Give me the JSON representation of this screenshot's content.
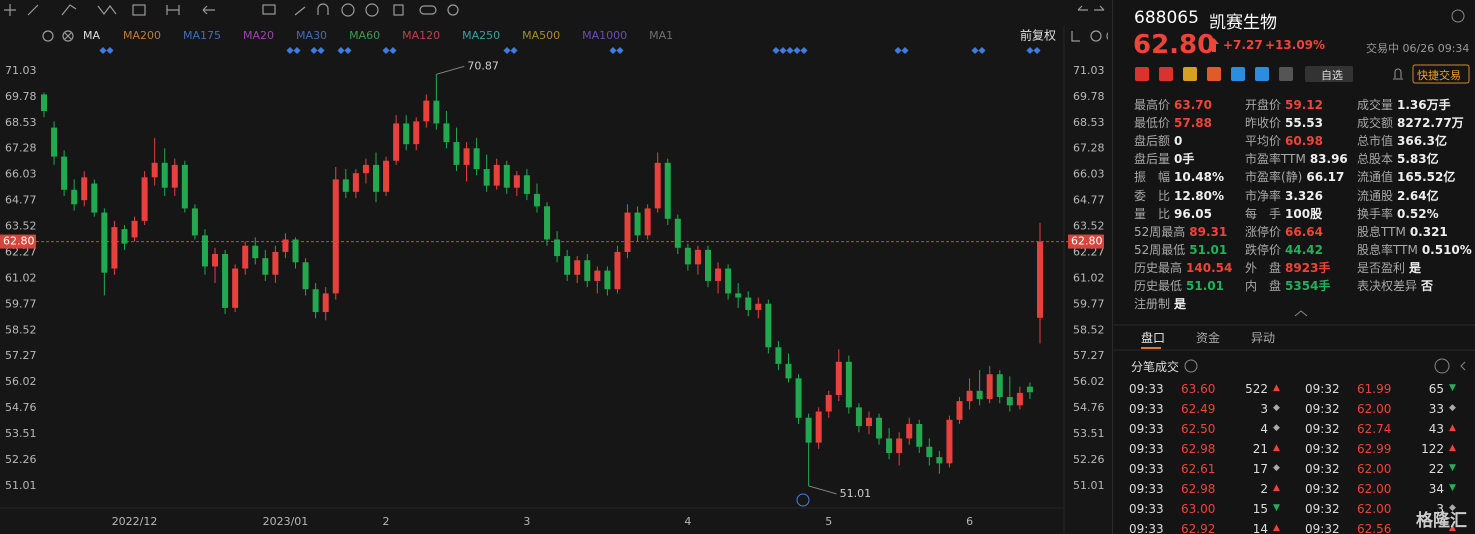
{
  "toolbar": {
    "ma": "MA",
    "ma_legend": [
      {
        "label": "MA200",
        "color": "#c27a3c"
      },
      {
        "label": "MA175",
        "color": "#3f6fb3"
      },
      {
        "label": "MA20",
        "color": "#a043ad"
      },
      {
        "label": "MA30",
        "color": "#3f6fb3"
      },
      {
        "label": "MA60",
        "color": "#3f9a4c"
      },
      {
        "label": "MA120",
        "color": "#b4464b"
      },
      {
        "label": "MA250",
        "color": "#3a9fa2"
      },
      {
        "label": "MA500",
        "color": "#a98b2c"
      },
      {
        "label": "MA1000",
        "color": "#6b4db3"
      },
      {
        "label": "MA1",
        "color": "#6f6f6f"
      }
    ],
    "adjust": "前复权"
  },
  "chart_data": {
    "type": "candlestick",
    "up_color": "#e8403c",
    "down_color": "#22a94f",
    "ylim": [
      50.09,
      72.14
    ],
    "yticks": [
      71.03,
      69.78,
      68.53,
      67.28,
      66.03,
      64.77,
      63.52,
      62.27,
      61.02,
      59.77,
      58.52,
      57.27,
      56.02,
      54.76,
      53.51,
      52.26,
      51.01
    ],
    "last_price": {
      "value": 62.8,
      "label": "62.80"
    },
    "annotations": [
      70.87,
      51.01
    ],
    "categories": [
      null,
      null,
      null,
      null,
      null,
      null,
      null,
      null,
      null,
      "2022/12",
      null,
      null,
      null,
      null,
      null,
      null,
      null,
      null,
      null,
      null,
      null,
      null,
      null,
      null,
      "2023/01",
      null,
      null,
      null,
      null,
      null,
      null,
      null,
      null,
      null,
      "2",
      null,
      null,
      null,
      null,
      null,
      null,
      null,
      null,
      null,
      null,
      null,
      null,
      null,
      "3",
      null,
      null,
      null,
      null,
      null,
      null,
      null,
      null,
      null,
      null,
      null,
      null,
      null,
      null,
      null,
      "4",
      null,
      null,
      null,
      null,
      null,
      null,
      null,
      null,
      null,
      null,
      null,
      null,
      null,
      "5",
      null,
      null,
      null,
      null,
      null,
      null,
      null,
      null,
      null,
      null,
      null,
      null,
      null,
      "6",
      null,
      null,
      null,
      null,
      null,
      null,
      null
    ],
    "candles": [
      [
        69.9,
        70.0,
        68.8,
        69.1
      ],
      [
        68.3,
        68.6,
        66.5,
        66.9
      ],
      [
        66.9,
        67.2,
        65.0,
        65.3
      ],
      [
        65.3,
        65.8,
        64.3,
        64.6
      ],
      [
        64.8,
        66.2,
        64.5,
        65.9
      ],
      [
        65.6,
        65.8,
        64.0,
        64.2
      ],
      [
        64.2,
        64.4,
        60.2,
        61.3
      ],
      [
        61.5,
        63.8,
        61.2,
        63.5
      ],
      [
        63.4,
        63.6,
        62.4,
        62.7
      ],
      [
        63.0,
        64.0,
        62.8,
        63.8
      ],
      [
        63.8,
        66.2,
        63.6,
        65.9
      ],
      [
        65.9,
        67.8,
        65.5,
        66.6
      ],
      [
        66.6,
        67.3,
        65.0,
        65.4
      ],
      [
        65.4,
        66.8,
        65.0,
        66.5
      ],
      [
        66.5,
        66.7,
        64.2,
        64.4
      ],
      [
        64.4,
        64.6,
        62.9,
        63.1
      ],
      [
        63.1,
        63.4,
        61.2,
        61.6
      ],
      [
        61.6,
        62.5,
        60.8,
        62.2
      ],
      [
        62.2,
        62.4,
        59.3,
        59.6
      ],
      [
        59.6,
        61.7,
        59.4,
        61.5
      ],
      [
        61.5,
        62.8,
        61.2,
        62.6
      ],
      [
        62.6,
        63.0,
        61.7,
        62.0
      ],
      [
        62.0,
        62.4,
        60.9,
        61.2
      ],
      [
        61.2,
        62.6,
        60.8,
        62.3
      ],
      [
        62.3,
        63.2,
        62.0,
        62.9
      ],
      [
        62.9,
        63.0,
        61.5,
        61.8
      ],
      [
        61.8,
        62.0,
        60.2,
        60.5
      ],
      [
        60.5,
        60.8,
        59.1,
        59.4
      ],
      [
        59.4,
        60.6,
        59.0,
        60.3
      ],
      [
        60.3,
        66.4,
        60.0,
        65.8
      ],
      [
        65.8,
        66.3,
        64.9,
        65.2
      ],
      [
        65.2,
        66.3,
        64.9,
        66.1
      ],
      [
        66.1,
        66.8,
        65.6,
        66.5
      ],
      [
        66.5,
        67.1,
        64.7,
        65.2
      ],
      [
        65.2,
        66.9,
        65.0,
        66.7
      ],
      [
        66.7,
        68.9,
        66.5,
        68.5
      ],
      [
        68.5,
        68.9,
        67.2,
        67.5
      ],
      [
        67.5,
        68.8,
        67.2,
        68.6
      ],
      [
        68.6,
        69.9,
        68.3,
        69.6
      ],
      [
        69.6,
        70.87,
        68.2,
        68.5
      ],
      [
        68.5,
        69.1,
        67.3,
        67.6
      ],
      [
        67.6,
        68.3,
        66.2,
        66.5
      ],
      [
        66.5,
        67.6,
        65.7,
        67.3
      ],
      [
        67.3,
        67.8,
        66.0,
        66.3
      ],
      [
        66.3,
        67.0,
        65.2,
        65.5
      ],
      [
        65.5,
        66.8,
        65.3,
        66.5
      ],
      [
        66.5,
        66.7,
        65.1,
        65.4
      ],
      [
        65.4,
        66.2,
        65.0,
        66.0
      ],
      [
        66.0,
        66.3,
        64.8,
        65.1
      ],
      [
        65.1,
        65.6,
        64.2,
        64.5
      ],
      [
        64.5,
        64.7,
        62.6,
        62.9
      ],
      [
        62.9,
        63.3,
        61.8,
        62.1
      ],
      [
        62.1,
        62.4,
        60.9,
        61.2
      ],
      [
        61.2,
        62.1,
        60.8,
        61.9
      ],
      [
        61.9,
        62.2,
        60.6,
        60.9
      ],
      [
        60.9,
        61.6,
        60.3,
        61.4
      ],
      [
        61.4,
        61.6,
        60.2,
        60.5
      ],
      [
        60.5,
        62.6,
        60.3,
        62.3
      ],
      [
        62.3,
        64.6,
        62.0,
        64.2
      ],
      [
        64.2,
        64.5,
        62.8,
        63.1
      ],
      [
        63.1,
        64.6,
        62.9,
        64.4
      ],
      [
        64.4,
        67.1,
        64.2,
        66.6
      ],
      [
        66.6,
        66.8,
        63.6,
        63.9
      ],
      [
        63.9,
        64.1,
        62.2,
        62.5
      ],
      [
        62.5,
        62.7,
        61.4,
        61.7
      ],
      [
        61.7,
        62.6,
        61.2,
        62.4
      ],
      [
        62.4,
        62.6,
        60.6,
        60.9
      ],
      [
        60.9,
        61.8,
        60.3,
        61.5
      ],
      [
        61.5,
        61.7,
        60.0,
        60.3
      ],
      [
        60.3,
        60.8,
        59.6,
        60.1
      ],
      [
        60.1,
        60.4,
        59.2,
        59.5
      ],
      [
        59.5,
        60.1,
        59.1,
        59.8
      ],
      [
        59.8,
        60.0,
        57.4,
        57.7
      ],
      [
        57.7,
        58.0,
        56.6,
        56.9
      ],
      [
        56.9,
        57.4,
        56.0,
        56.2
      ],
      [
        56.2,
        56.4,
        54.0,
        54.3
      ],
      [
        54.3,
        54.5,
        51.01,
        53.1
      ],
      [
        53.1,
        54.8,
        52.8,
        54.6
      ],
      [
        54.6,
        55.6,
        54.3,
        55.4
      ],
      [
        55.4,
        57.6,
        55.1,
        57.0
      ],
      [
        57.0,
        57.3,
        54.5,
        54.8
      ],
      [
        54.8,
        55.0,
        53.6,
        53.9
      ],
      [
        53.9,
        54.6,
        53.5,
        54.3
      ],
      [
        54.3,
        54.5,
        53.0,
        53.3
      ],
      [
        53.3,
        53.8,
        52.3,
        52.6
      ],
      [
        52.6,
        53.6,
        52.0,
        53.3
      ],
      [
        53.3,
        54.3,
        53.0,
        54.0
      ],
      [
        54.0,
        54.2,
        52.6,
        52.9
      ],
      [
        52.9,
        53.3,
        52.0,
        52.4
      ],
      [
        52.4,
        52.7,
        51.6,
        52.1
      ],
      [
        52.1,
        54.4,
        51.9,
        54.2
      ],
      [
        54.2,
        55.3,
        54.0,
        55.1
      ],
      [
        55.1,
        56.2,
        54.7,
        55.6
      ],
      [
        55.6,
        56.6,
        54.9,
        55.2
      ],
      [
        55.2,
        56.8,
        55.0,
        56.4
      ],
      [
        56.4,
        56.6,
        55.0,
        55.3
      ],
      [
        55.3,
        56.3,
        54.6,
        54.9
      ],
      [
        54.9,
        55.8,
        54.7,
        55.5
      ],
      [
        55.8,
        56.0,
        55.2,
        55.53
      ],
      [
        59.12,
        63.7,
        57.88,
        62.8
      ]
    ]
  },
  "quote": {
    "code": "688065",
    "name": "凯赛生物",
    "price": "62.80",
    "change": "+7.27",
    "change_pct": "+13.09%",
    "status": "交易中 06/26 09:34",
    "watch": "自选",
    "quick_trade": "快捷交易"
  },
  "stats": [
    [
      {
        "label": "最高价",
        "value": "63.70",
        "color": "#f0433a"
      },
      {
        "label": "最低价",
        "value": "57.88",
        "color": "#f0433a"
      },
      {
        "label": "盘后额",
        "value": "0"
      },
      {
        "label": "盘后量",
        "value": "0手"
      },
      {
        "label": "振　幅",
        "value": "10.48%"
      },
      {
        "label": "委　比",
        "value": "12.80%"
      },
      {
        "label": "量　比",
        "value": "96.05"
      },
      {
        "label": "52周最高",
        "value": "89.31",
        "color": "#f0433a"
      },
      {
        "label": "52周最低",
        "value": "51.01",
        "color": "#20b15a"
      },
      {
        "label": "历史最高",
        "value": "140.54",
        "color": "#f0433a"
      },
      {
        "label": "历史最低",
        "value": "51.01",
        "color": "#20b15a"
      },
      {
        "label": "注册制",
        "value": "是"
      }
    ],
    [
      {
        "label": "开盘价",
        "value": "59.12",
        "color": "#f0433a"
      },
      {
        "label": "昨收价",
        "value": "55.53"
      },
      {
        "label": "平均价",
        "value": "60.98",
        "color": "#f0433a"
      },
      {
        "label": "市盈率TTM",
        "value": "83.96"
      },
      {
        "label": "市盈率(静)",
        "value": "66.17"
      },
      {
        "label": "市净率",
        "value": "3.326"
      },
      {
        "label": "每　手",
        "value": "100股"
      },
      {
        "label": "涨停价",
        "value": "66.64",
        "color": "#f0433a"
      },
      {
        "label": "跌停价",
        "value": "44.42",
        "color": "#20b15a"
      },
      {
        "label": "外　盘",
        "value": "8923手",
        "color": "#f0433a"
      },
      {
        "label": "内　盘",
        "value": "5354手",
        "color": "#20b15a"
      }
    ],
    [
      {
        "label": "成交量",
        "value": "1.36万手"
      },
      {
        "label": "成交额",
        "value": "8272.77万"
      },
      {
        "label": "总市值",
        "value": "366.3亿"
      },
      {
        "label": "总股本",
        "value": "5.83亿"
      },
      {
        "label": "流通值",
        "value": "165.52亿"
      },
      {
        "label": "流通股",
        "value": "2.64亿"
      },
      {
        "label": "换手率",
        "value": "0.52%"
      },
      {
        "label": "股息TTM",
        "value": "0.321"
      },
      {
        "label": "股息率TTM",
        "value": "0.510%"
      },
      {
        "label": "是否盈利",
        "value": "是"
      },
      {
        "label": "表决权差异",
        "value": "否"
      }
    ]
  ],
  "tabs": [
    "盘口",
    "资金",
    "异动"
  ],
  "trades_title": "分笔成交",
  "trades": [
    [
      {
        "time": "09:33",
        "price": "63.60",
        "volume": "522",
        "arrow": "▲"
      },
      {
        "time": "09:32",
        "price": "61.99",
        "volume": "65",
        "arrow": "▼"
      }
    ],
    [
      {
        "time": "09:33",
        "price": "62.49",
        "volume": "3",
        "arrow": "◆"
      },
      {
        "time": "09:32",
        "price": "62.00",
        "volume": "33",
        "arrow": "◆"
      }
    ],
    [
      {
        "time": "09:33",
        "price": "62.50",
        "volume": "4",
        "arrow": "◆"
      },
      {
        "time": "09:32",
        "price": "62.74",
        "volume": "43",
        "arrow": "▲"
      }
    ],
    [
      {
        "time": "09:33",
        "price": "62.98",
        "volume": "21",
        "arrow": "▲"
      },
      {
        "time": "09:32",
        "price": "62.99",
        "volume": "122",
        "arrow": "▲"
      }
    ],
    [
      {
        "time": "09:33",
        "price": "62.61",
        "volume": "17",
        "arrow": "◆"
      },
      {
        "time": "09:32",
        "price": "62.00",
        "volume": "22",
        "arrow": "▼"
      }
    ],
    [
      {
        "time": "09:33",
        "price": "62.98",
        "volume": "2",
        "arrow": "▲"
      },
      {
        "time": "09:32",
        "price": "62.00",
        "volume": "34",
        "arrow": "▼"
      }
    ],
    [
      {
        "time": "09:33",
        "price": "63.00",
        "volume": "15",
        "arrow": "▼"
      },
      {
        "time": "09:32",
        "price": "62.00",
        "volume": "3",
        "arrow": "◆"
      }
    ],
    [
      {
        "time": "09:33",
        "price": "62.92",
        "volume": "14",
        "arrow": "▲"
      },
      {
        "time": "09:32",
        "price": "62.56",
        "arrow": "▲"
      }
    ]
  ],
  "watermark": "格隆汇"
}
